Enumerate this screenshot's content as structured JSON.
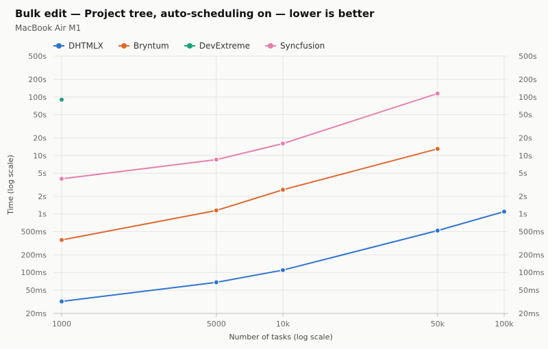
{
  "chart_data": {
    "type": "line",
    "title": "Bulk edit — Project tree, auto-scheduling on — lower is better",
    "subtitle": "MacBook Air M1",
    "xlabel": "Number of tasks (log scale)",
    "ylabel": "Time (log scale)",
    "x_scale": "log",
    "y_scale": "log",
    "x_ticks": [
      {
        "value": 1000,
        "label": "1000"
      },
      {
        "value": 5000,
        "label": "5000"
      },
      {
        "value": 10000,
        "label": "10k"
      },
      {
        "value": 50000,
        "label": "50k"
      },
      {
        "value": 100000,
        "label": "100k"
      }
    ],
    "y_ticks": [
      {
        "value": 0.02,
        "label": "20ms"
      },
      {
        "value": 0.05,
        "label": "50ms"
      },
      {
        "value": 0.1,
        "label": "100ms"
      },
      {
        "value": 0.2,
        "label": "200ms"
      },
      {
        "value": 0.5,
        "label": "500ms"
      },
      {
        "value": 1,
        "label": "1s"
      },
      {
        "value": 2,
        "label": "2s"
      },
      {
        "value": 5,
        "label": "5s"
      },
      {
        "value": 10,
        "label": "10s"
      },
      {
        "value": 20,
        "label": "20s"
      },
      {
        "value": 50,
        "label": "50s"
      },
      {
        "value": 100,
        "label": "100s"
      },
      {
        "value": 200,
        "label": "200s"
      },
      {
        "value": 500,
        "label": "500s"
      }
    ],
    "xlim": [
      1000,
      100000
    ],
    "ylim": [
      0.02,
      500
    ],
    "grid": true,
    "legend_position": "top-left",
    "series": [
      {
        "name": "DHTMLX",
        "color": "#2f74d0",
        "points": [
          [
            1000,
            0.032
          ],
          [
            5000,
            0.068
          ],
          [
            10000,
            0.11
          ],
          [
            50000,
            0.52
          ],
          [
            100000,
            1.1
          ]
        ]
      },
      {
        "name": "Bryntum",
        "color": "#e0672d",
        "points": [
          [
            1000,
            0.36
          ],
          [
            5000,
            1.15
          ],
          [
            10000,
            2.6
          ],
          [
            50000,
            13
          ]
        ]
      },
      {
        "name": "DevExtreme",
        "color": "#1aa47a",
        "points": [
          [
            1000,
            90
          ]
        ]
      },
      {
        "name": "Syncfusion",
        "color": "#e57fa7",
        "points": [
          [
            1000,
            4
          ],
          [
            5000,
            8.5
          ],
          [
            10000,
            16
          ],
          [
            50000,
            115
          ]
        ]
      }
    ]
  }
}
